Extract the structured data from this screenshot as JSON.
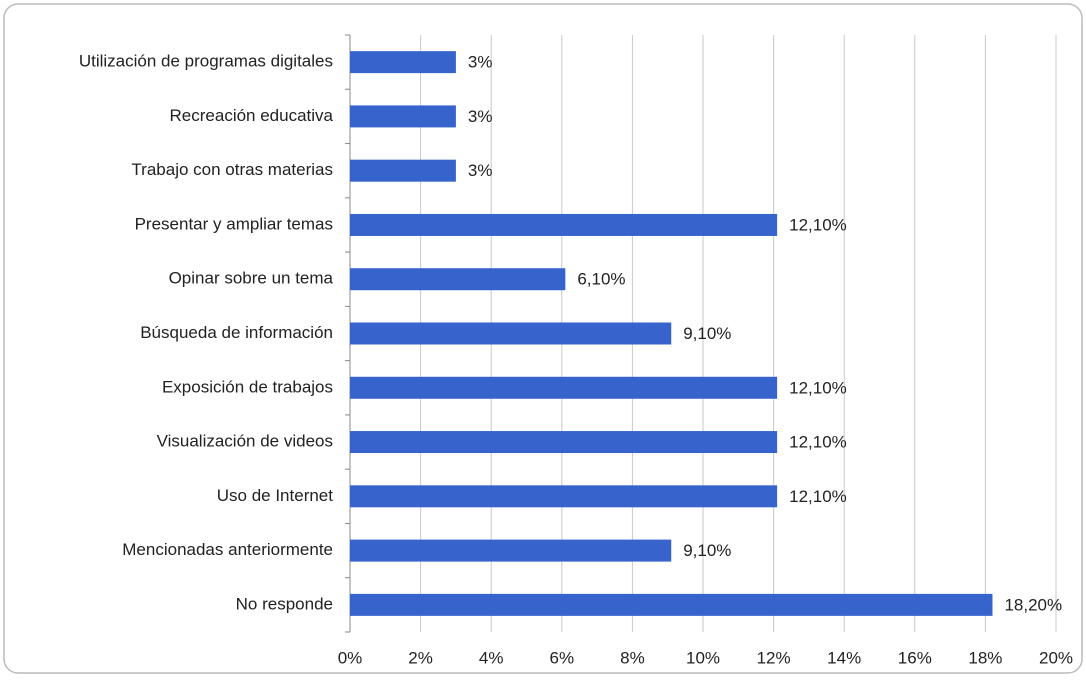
{
  "chart_data": {
    "type": "bar",
    "orientation": "horizontal",
    "categories": [
      "Utilización de programas digitales",
      "Recreación educativa",
      "Trabajo con otras materias",
      "Presentar y ampliar temas",
      "Opinar sobre un tema",
      "Búsqueda de información",
      "Exposición de trabajos",
      "Visualización de videos",
      "Uso de Internet",
      "Mencionadas anteriormente",
      "No responde"
    ],
    "values": [
      3,
      3,
      3,
      12.1,
      6.1,
      9.1,
      12.1,
      12.1,
      12.1,
      9.1,
      18.2
    ],
    "value_labels": [
      "3%",
      "3%",
      "3%",
      "12,10%",
      "6,10%",
      "9,10%",
      "12,10%",
      "12,10%",
      "12,10%",
      "9,10%",
      "18,20%"
    ],
    "color": "#3663cc",
    "xlim": [
      0,
      20
    ],
    "xticks": [
      {
        "value": 0,
        "label": "0%"
      },
      {
        "value": 2,
        "label": "2%"
      },
      {
        "value": 4,
        "label": "4%"
      },
      {
        "value": 6,
        "label": "6%"
      },
      {
        "value": 8,
        "label": "8%"
      },
      {
        "value": 10,
        "label": "10%"
      },
      {
        "value": 12,
        "label": "12%"
      },
      {
        "value": 14,
        "label": "14%"
      },
      {
        "value": 16,
        "label": "16%"
      },
      {
        "value": 18,
        "label": "18%"
      },
      {
        "value": 20,
        "label": "20%"
      }
    ],
    "grid": true
  }
}
